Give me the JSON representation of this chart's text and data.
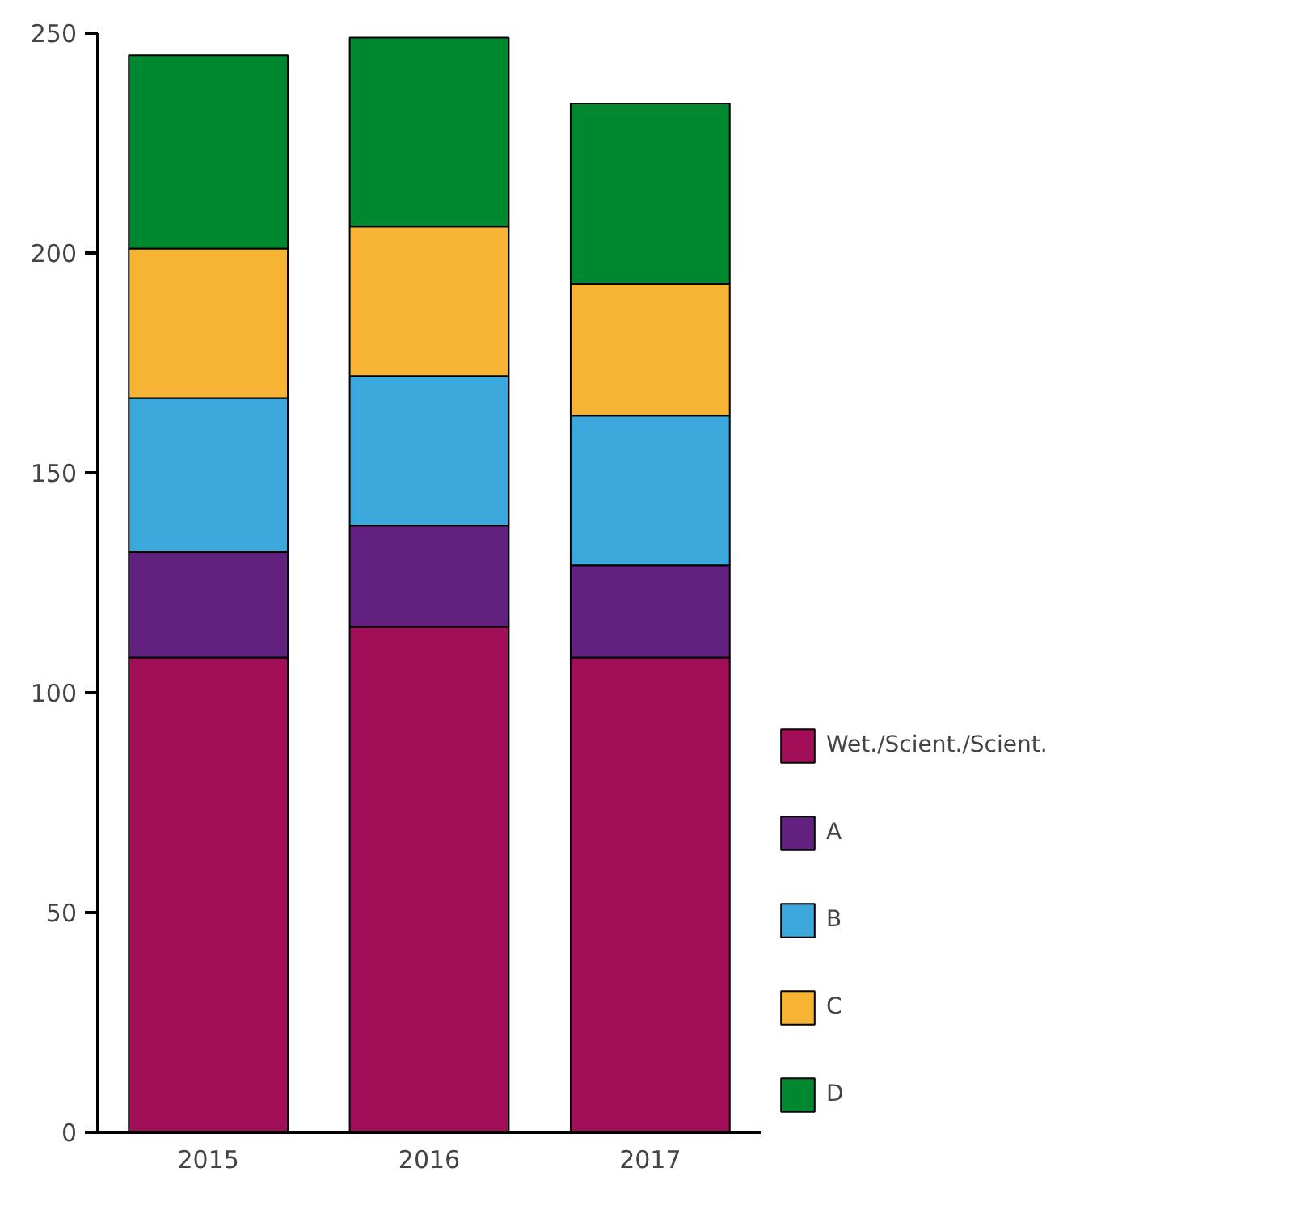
{
  "chart_data": {
    "type": "bar",
    "stacked": true,
    "categories": [
      "2015",
      "2016",
      "2017"
    ],
    "series": [
      {
        "name": "Wet./Scient./Scient.",
        "color": "#a10f58",
        "values": [
          108,
          115,
          108
        ]
      },
      {
        "name": "A",
        "color": "#62217f",
        "values": [
          24,
          23,
          21
        ]
      },
      {
        "name": "B",
        "color": "#3ba8db",
        "values": [
          35,
          34,
          34
        ]
      },
      {
        "name": "C",
        "color": "#f7b334",
        "values": [
          34,
          34,
          30
        ]
      },
      {
        "name": "D",
        "color": "#008830",
        "values": [
          44,
          43,
          41
        ]
      }
    ],
    "ylim": [
      0,
      250
    ],
    "yticks": [
      0,
      50,
      100,
      150,
      200,
      250
    ],
    "grid": false,
    "legend": "right"
  }
}
